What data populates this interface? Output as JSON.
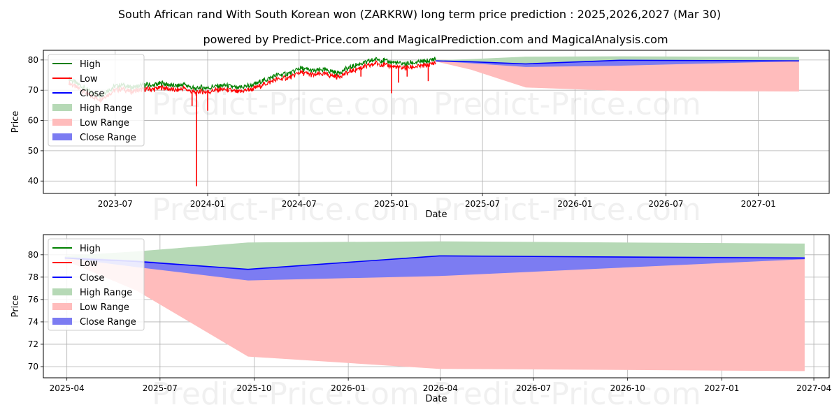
{
  "title": "South African rand With South Korean won (ZARKRW) long term price prediction : 2025,2026,2027 (Mar 30)",
  "subtitle": "powered by Predict-Price.com and MagicalPrediction.com and MagicalAnalysis.com",
  "watermark": "Predict-Price.com",
  "colors": {
    "high": "#008000",
    "low": "#ff0000",
    "close": "#0000ff",
    "high_range": "#b6d9b6",
    "low_range": "#ffbcbc",
    "close_range": "#7c7cf2"
  },
  "legend": [
    "High",
    "Low",
    "Close",
    "High Range",
    "Low Range",
    "Close Range"
  ],
  "chart_data": [
    {
      "type": "line",
      "panel": "top",
      "xlabel": "Date",
      "ylabel": "Price",
      "xlim": [
        "2023-02-08",
        "2027-05-22"
      ],
      "ylim": [
        35.9,
        83.2
      ],
      "xticks": [
        {
          "date": "2023-07-01",
          "label": "2023-07"
        },
        {
          "date": "2024-01-01",
          "label": "2024-01"
        },
        {
          "date": "2024-07-01",
          "label": "2024-07"
        },
        {
          "date": "2025-01-01",
          "label": "2025-01"
        },
        {
          "date": "2025-07-01",
          "label": "2025-07"
        },
        {
          "date": "2026-01-01",
          "label": "2026-01"
        },
        {
          "date": "2026-07-01",
          "label": "2026-07"
        },
        {
          "date": "2027-01-01",
          "label": "2027-01"
        }
      ],
      "yticks": [
        40,
        50,
        60,
        70,
        80
      ],
      "history": {
        "dates": [
          "2023-03-31",
          "2023-04-15",
          "2023-05-01",
          "2023-05-15",
          "2023-06-01",
          "2023-06-15",
          "2023-07-01",
          "2023-07-15",
          "2023-08-01",
          "2023-08-15",
          "2023-09-01",
          "2023-09-15",
          "2023-10-01",
          "2023-10-15",
          "2023-11-01",
          "2023-11-15",
          "2023-12-01",
          "2023-12-10",
          "2023-12-15",
          "2024-01-01",
          "2024-01-15",
          "2024-02-01",
          "2024-02-15",
          "2024-03-01",
          "2024-03-15",
          "2024-04-01",
          "2024-04-15",
          "2024-05-01",
          "2024-05-15",
          "2024-06-01",
          "2024-06-15",
          "2024-07-01",
          "2024-07-15",
          "2024-08-01",
          "2024-08-15",
          "2024-09-01",
          "2024-09-15",
          "2024-10-01",
          "2024-10-15",
          "2024-11-01",
          "2024-11-15",
          "2024-12-01",
          "2024-12-15",
          "2025-01-01",
          "2025-01-15",
          "2025-02-01",
          "2025-02-15",
          "2025-03-01",
          "2025-03-15",
          "2025-03-30"
        ],
        "close": [
          73.0,
          71.5,
          70.0,
          68.5,
          67.5,
          69.0,
          70.5,
          71.0,
          70.0,
          70.5,
          71.0,
          70.8,
          71.5,
          71.0,
          70.5,
          71.2,
          70.0,
          69.5,
          70.2,
          70.0,
          70.5,
          70.8,
          70.5,
          69.8,
          70.5,
          71.0,
          72.0,
          73.0,
          74.0,
          74.5,
          74.8,
          76.5,
          76.0,
          75.5,
          76.0,
          75.5,
          75.0,
          76.0,
          77.0,
          78.0,
          78.5,
          79.5,
          79.0,
          78.5,
          78.0,
          78.0,
          78.3,
          78.5,
          78.8,
          79.7
        ],
        "high": [
          73.8,
          72.3,
          70.8,
          69.3,
          68.3,
          69.8,
          71.3,
          72.8,
          70.8,
          72.3,
          71.8,
          72.2,
          72.3,
          72.3,
          71.3,
          72.0,
          71.0,
          70.3,
          72.0,
          70.8,
          71.3,
          71.6,
          71.3,
          70.6,
          71.3,
          71.8,
          72.8,
          73.8,
          74.8,
          75.3,
          75.6,
          77.3,
          76.8,
          76.3,
          76.8,
          76.3,
          75.8,
          76.8,
          77.8,
          78.8,
          79.3,
          80.8,
          79.8,
          79.3,
          78.8,
          78.8,
          79.1,
          79.3,
          79.6,
          80.5
        ],
        "low": [
          72.2,
          70.7,
          69.2,
          67.7,
          66.7,
          68.2,
          69.7,
          70.2,
          69.2,
          69.7,
          70.2,
          70.0,
          70.7,
          70.2,
          69.7,
          70.4,
          64.8,
          38.3,
          69.4,
          63.2,
          69.7,
          70.0,
          69.7,
          69.0,
          69.7,
          70.2,
          71.2,
          72.2,
          73.2,
          73.7,
          74.0,
          75.7,
          75.2,
          74.7,
          75.2,
          74.7,
          74.2,
          75.2,
          76.2,
          74.5,
          77.7,
          78.7,
          76.0,
          69.0,
          72.5,
          74.5,
          77.5,
          77.7,
          73.0,
          79.0
        ]
      },
      "forecast": {
        "dates": [
          "2025-03-30",
          "2025-06-08",
          "2025-09-25",
          "2026-03-31",
          "2027-03-23"
        ],
        "close": [
          79.7,
          79.4,
          78.7,
          79.9,
          79.7
        ],
        "high_range": [
          79.9,
          80.3,
          81.1,
          81.2,
          81.0
        ],
        "low_range": [
          79.5,
          76.8,
          70.9,
          69.8,
          69.6
        ],
        "close_range_upper": [
          79.8,
          79.5,
          78.7,
          79.9,
          79.8
        ],
        "close_range_lower": [
          79.7,
          78.9,
          77.7,
          78.1,
          79.6
        ]
      }
    },
    {
      "type": "line",
      "panel": "bottom",
      "xlabel": "Date",
      "ylabel": "Price",
      "xlim": [
        "2025-03-09",
        "2027-04-16"
      ],
      "ylim": [
        69.0,
        81.8
      ],
      "xticks": [
        {
          "date": "2025-04-01",
          "label": "2025-04"
        },
        {
          "date": "2025-07-01",
          "label": "2025-07"
        },
        {
          "date": "2025-10-01",
          "label": "2025-10"
        },
        {
          "date": "2026-01-01",
          "label": "2026-01"
        },
        {
          "date": "2026-04-01",
          "label": "2026-04"
        },
        {
          "date": "2026-07-01",
          "label": "2026-07"
        },
        {
          "date": "2026-10-01",
          "label": "2026-10"
        },
        {
          "date": "2027-01-01",
          "label": "2027-01"
        },
        {
          "date": "2027-04-01",
          "label": "2027-04"
        }
      ],
      "yticks": [
        70,
        72,
        74,
        76,
        78,
        80
      ],
      "forecast": {
        "dates": [
          "2025-03-30",
          "2025-06-08",
          "2025-09-25",
          "2026-03-31",
          "2027-03-23"
        ],
        "close": [
          79.7,
          79.4,
          78.7,
          79.9,
          79.7
        ],
        "high_range": [
          79.9,
          80.3,
          81.1,
          81.2,
          81.0
        ],
        "low_range": [
          79.5,
          76.8,
          70.9,
          69.8,
          69.6
        ],
        "close_range_upper": [
          79.8,
          79.5,
          78.7,
          79.9,
          79.8
        ],
        "close_range_lower": [
          79.7,
          78.9,
          77.7,
          78.1,
          79.6
        ]
      }
    }
  ]
}
